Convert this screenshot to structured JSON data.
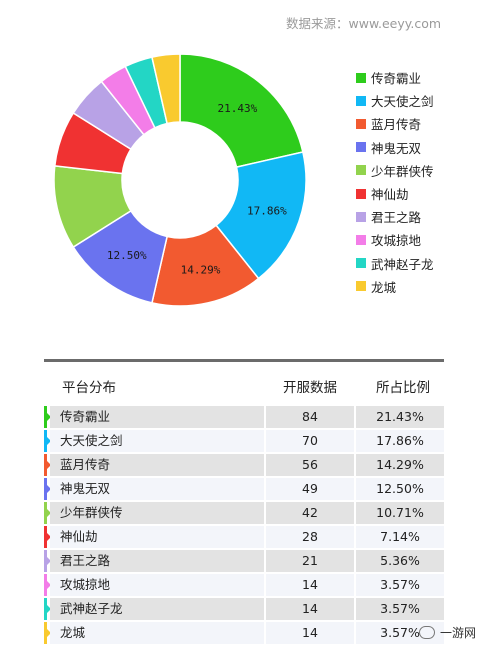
{
  "source_label": "数据来源：www.eeyy.com",
  "chart_data": {
    "type": "pie",
    "style": "donut",
    "legend_position": "right",
    "categories": [
      "传奇霸业",
      "大天使之剑",
      "蓝月传奇",
      "神鬼无双",
      "少年群侠传",
      "神仙劫",
      "君王之路",
      "攻城掠地",
      "武神赵子龙",
      "龙城"
    ],
    "values": [
      84,
      70,
      56,
      49,
      42,
      28,
      21,
      14,
      14,
      14
    ],
    "percent_labels": [
      "21.43%",
      "17.86%",
      "14.29%",
      "12.50%",
      "",
      "",
      "",
      "",
      "",
      ""
    ],
    "colors": [
      "#2ecc1c",
      "#11b8f5",
      "#f25a30",
      "#6a73ef",
      "#92d34d",
      "#f03232",
      "#b8a2e6",
      "#f37de8",
      "#23d6c5",
      "#f9ca2f"
    ]
  },
  "table": {
    "headers": [
      "平台分布",
      "开服数据",
      "所占比例"
    ],
    "rows": [
      {
        "name": "传奇霸业",
        "count": "84",
        "share": "21.43%"
      },
      {
        "name": "大天使之剑",
        "count": "70",
        "share": "17.86%"
      },
      {
        "name": "蓝月传奇",
        "count": "56",
        "share": "14.29%"
      },
      {
        "name": "神鬼无双",
        "count": "49",
        "share": "12.50%"
      },
      {
        "name": "少年群侠传",
        "count": "42",
        "share": "10.71%"
      },
      {
        "name": "神仙劫",
        "count": "28",
        "share": "7.14%"
      },
      {
        "name": "君王之路",
        "count": "21",
        "share": "5.36%"
      },
      {
        "name": "攻城掠地",
        "count": "14",
        "share": "3.57%"
      },
      {
        "name": "武神赵子龙",
        "count": "14",
        "share": "3.57%"
      },
      {
        "name": "龙城",
        "count": "14",
        "share": "3.57%"
      }
    ]
  },
  "brand": {
    "label": "一游网",
    "icon": "wechat-icon"
  }
}
